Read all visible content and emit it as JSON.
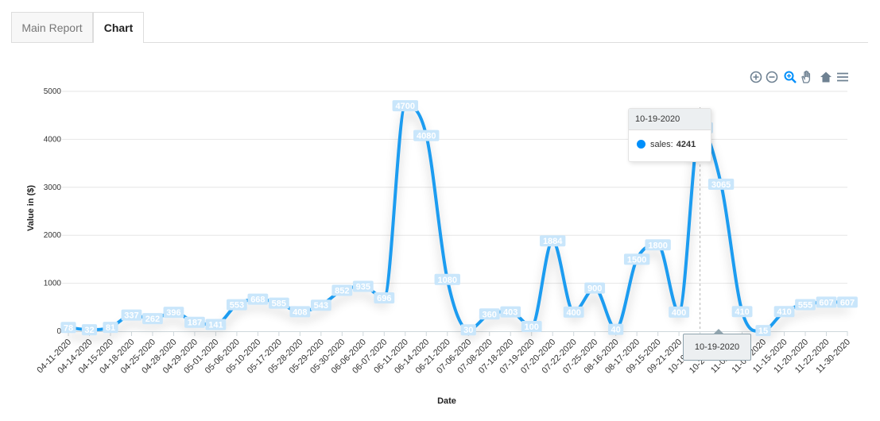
{
  "tabs": [
    {
      "label": "Main Report",
      "active": false
    },
    {
      "label": "Chart",
      "active": true
    }
  ],
  "toolbar": {
    "icons": [
      "zoom-in-icon",
      "zoom-out-icon",
      "selection-zoom-icon",
      "pan-icon",
      "home-reset-icon",
      "menu-icon"
    ]
  },
  "colors": {
    "series": "#1e9cf0",
    "label_bg": "#c9e6fb",
    "tooltip_marker": "#008ffb"
  },
  "tooltip": {
    "title": "10-19-2020",
    "series_label": "sales:",
    "value": "4241"
  },
  "crosshair_label": "10-19-2020",
  "chart_data": {
    "type": "line",
    "curve": "smooth",
    "xlabel": "Date",
    "ylabel": "Value in ($)",
    "ylim": [
      0,
      5000
    ],
    "yticks": [
      0,
      1000,
      2000,
      3000,
      4000,
      5000
    ],
    "grid": true,
    "data_labels": true,
    "categories": [
      "04-11-2020",
      "04-14-2020",
      "04-15-2020",
      "04-18-2020",
      "04-25-2020",
      "04-28-2020",
      "04-29-2020",
      "05-01-2020",
      "05-06-2020",
      "05-10-2020",
      "05-17-2020",
      "05-28-2020",
      "05-29-2020",
      "05-30-2020",
      "06-06-2020",
      "06-07-2020",
      "06-11-2020",
      "06-14-2020",
      "06-21-2020",
      "07-06-2020",
      "07-08-2020",
      "07-18-2020",
      "07-19-2020",
      "07-20-2020",
      "07-22-2020",
      "07-25-2020",
      "08-16-2020",
      "08-17-2020",
      "09-15-2020",
      "09-21-2020",
      "10-19-2020",
      "10-26-2020",
      "11-02-2020",
      "11-09-2020",
      "11-15-2020",
      "11-20-2020",
      "11-22-2020",
      "11-30-2020"
    ],
    "series": [
      {
        "name": "sales",
        "values": [
          78,
          32,
          81,
          337,
          262,
          396,
          187,
          141,
          553,
          668,
          585,
          408,
          543,
          852,
          935,
          696,
          4700,
          4080,
          1080,
          30,
          360,
          403,
          100,
          1884,
          400,
          900,
          40,
          1500,
          1800,
          400,
          4241,
          3065,
          410,
          15,
          410,
          555,
          607,
          607
        ]
      }
    ]
  }
}
